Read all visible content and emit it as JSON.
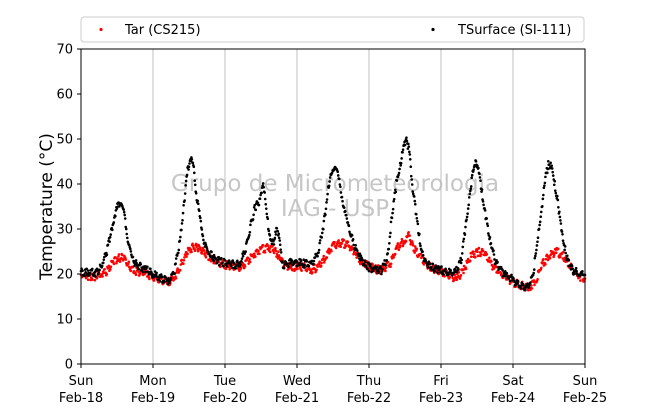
{
  "chart_data": {
    "type": "scatter",
    "xlabel": "",
    "ylabel": "Temperature (°C)",
    "ylim": [
      0,
      70
    ],
    "yticks": [
      0,
      10,
      20,
      30,
      40,
      50,
      60,
      70
    ],
    "xlim": [
      0,
      7
    ],
    "xticks": [
      {
        "x": 0,
        "line1": "Sun",
        "line2": "Feb-18"
      },
      {
        "x": 1,
        "line1": "Mon",
        "line2": "Feb-19"
      },
      {
        "x": 2,
        "line1": "Tue",
        "line2": "Feb-20"
      },
      {
        "x": 3,
        "line1": "Wed",
        "line2": "Feb-21"
      },
      {
        "x": 4,
        "line1": "Thu",
        "line2": "Feb-22"
      },
      {
        "x": 5,
        "line1": "Fri",
        "line2": "Feb-23"
      },
      {
        "x": 6,
        "line1": "Sat",
        "line2": "Feb-24"
      },
      {
        "x": 7,
        "line1": "Sun",
        "line2": "Feb-25"
      }
    ],
    "grid": "vertical",
    "legend_position": "top",
    "watermark": [
      "Grupo de Micrometeorologia",
      "IAG - USP"
    ],
    "series": [
      {
        "name": "Tar (CS215)",
        "color": "#ff0000",
        "marker": "dot",
        "points": [
          [
            0.0,
            19.8
          ],
          [
            0.1,
            19.5
          ],
          [
            0.2,
            19.5
          ],
          [
            0.3,
            19.9
          ],
          [
            0.38,
            21.0
          ],
          [
            0.45,
            22.8
          ],
          [
            0.52,
            23.5
          ],
          [
            0.58,
            23.8
          ],
          [
            0.65,
            22.0
          ],
          [
            0.75,
            20.8
          ],
          [
            0.9,
            20.0
          ],
          [
            1.0,
            19.3
          ],
          [
            1.1,
            18.8
          ],
          [
            1.22,
            18.3
          ],
          [
            1.32,
            19.5
          ],
          [
            1.4,
            22.5
          ],
          [
            1.48,
            25.0
          ],
          [
            1.55,
            26.0
          ],
          [
            1.62,
            25.8
          ],
          [
            1.7,
            25.0
          ],
          [
            1.8,
            23.5
          ],
          [
            1.9,
            22.5
          ],
          [
            2.0,
            22.0
          ],
          [
            2.1,
            21.8
          ],
          [
            2.2,
            21.5
          ],
          [
            2.3,
            22.5
          ],
          [
            2.4,
            24.5
          ],
          [
            2.5,
            25.5
          ],
          [
            2.6,
            25.8
          ],
          [
            2.68,
            25.5
          ],
          [
            2.75,
            24.0
          ],
          [
            2.82,
            22.0
          ],
          [
            2.95,
            21.5
          ],
          [
            3.0,
            21.8
          ],
          [
            3.1,
            21.5
          ],
          [
            3.2,
            21.0
          ],
          [
            3.3,
            21.5
          ],
          [
            3.4,
            24.0
          ],
          [
            3.5,
            26.2
          ],
          [
            3.6,
            27.0
          ],
          [
            3.7,
            26.5
          ],
          [
            3.8,
            25.0
          ],
          [
            3.9,
            22.5
          ],
          [
            4.0,
            21.8
          ],
          [
            4.1,
            21.0
          ],
          [
            4.2,
            21.0
          ],
          [
            4.3,
            22.5
          ],
          [
            4.4,
            26.0
          ],
          [
            4.5,
            27.5
          ],
          [
            4.55,
            28.5
          ],
          [
            4.62,
            26.0
          ],
          [
            4.72,
            23.5
          ],
          [
            4.85,
            21.5
          ],
          [
            5.0,
            20.5
          ],
          [
            5.1,
            19.8
          ],
          [
            5.22,
            19.0
          ],
          [
            5.32,
            21.0
          ],
          [
            5.42,
            24.0
          ],
          [
            5.52,
            25.0
          ],
          [
            5.6,
            24.5
          ],
          [
            5.7,
            22.0
          ],
          [
            5.85,
            20.0
          ],
          [
            6.0,
            18.2
          ],
          [
            6.1,
            17.5
          ],
          [
            6.22,
            17.0
          ],
          [
            6.32,
            18.5
          ],
          [
            6.4,
            22.0
          ],
          [
            6.5,
            24.0
          ],
          [
            6.6,
            25.0
          ],
          [
            6.7,
            24.0
          ],
          [
            6.8,
            21.5
          ],
          [
            6.9,
            19.5
          ],
          [
            7.0,
            19.0
          ]
        ]
      },
      {
        "name": "TSurface (SI-111)",
        "color": "#000000",
        "marker": "dot",
        "points": [
          [
            0.0,
            20.5
          ],
          [
            0.1,
            20.3
          ],
          [
            0.2,
            20.2
          ],
          [
            0.28,
            21.5
          ],
          [
            0.36,
            25.0
          ],
          [
            0.42,
            29.5
          ],
          [
            0.47,
            33.0
          ],
          [
            0.52,
            35.5
          ],
          [
            0.56,
            36.0
          ],
          [
            0.6,
            33.5
          ],
          [
            0.65,
            28.0
          ],
          [
            0.7,
            23.5
          ],
          [
            0.78,
            22.0
          ],
          [
            0.9,
            21.0
          ],
          [
            1.0,
            20.0
          ],
          [
            1.1,
            19.2
          ],
          [
            1.22,
            18.5
          ],
          [
            1.3,
            21.0
          ],
          [
            1.38,
            28.0
          ],
          [
            1.44,
            37.0
          ],
          [
            1.48,
            43.0
          ],
          [
            1.52,
            46.0
          ],
          [
            1.56,
            44.0
          ],
          [
            1.6,
            38.0
          ],
          [
            1.65,
            32.5
          ],
          [
            1.7,
            28.0
          ],
          [
            1.75,
            25.0
          ],
          [
            1.82,
            24.0
          ],
          [
            1.92,
            22.8
          ],
          [
            2.0,
            22.5
          ],
          [
            2.1,
            22.2
          ],
          [
            2.2,
            22.0
          ],
          [
            2.28,
            25.0
          ],
          [
            2.36,
            31.0
          ],
          [
            2.42,
            35.0
          ],
          [
            2.48,
            36.0
          ],
          [
            2.53,
            41.0
          ],
          [
            2.58,
            33.0
          ],
          [
            2.63,
            28.0
          ],
          [
            2.68,
            26.5
          ],
          [
            2.72,
            31.0
          ],
          [
            2.76,
            27.0
          ],
          [
            2.8,
            22.0
          ],
          [
            2.9,
            22.5
          ],
          [
            3.0,
            22.5
          ],
          [
            3.1,
            22.3
          ],
          [
            3.2,
            22.0
          ],
          [
            3.3,
            25.0
          ],
          [
            3.38,
            32.0
          ],
          [
            3.44,
            40.0
          ],
          [
            3.48,
            42.0
          ],
          [
            3.53,
            44.5
          ],
          [
            3.58,
            41.0
          ],
          [
            3.64,
            36.0
          ],
          [
            3.7,
            31.0
          ],
          [
            3.78,
            27.0
          ],
          [
            3.88,
            23.5
          ],
          [
            3.95,
            22.0
          ],
          [
            4.0,
            21.5
          ],
          [
            4.1,
            21.0
          ],
          [
            4.18,
            20.8
          ],
          [
            4.26,
            24.0
          ],
          [
            4.32,
            33.0
          ],
          [
            4.38,
            40.0
          ],
          [
            4.44,
            45.0
          ],
          [
            4.48,
            48.0
          ],
          [
            4.52,
            50.5
          ],
          [
            4.56,
            47.0
          ],
          [
            4.6,
            40.0
          ],
          [
            4.65,
            34.0
          ],
          [
            4.7,
            28.0
          ],
          [
            4.76,
            23.0
          ],
          [
            4.88,
            21.5
          ],
          [
            4.95,
            21.0
          ],
          [
            5.0,
            20.8
          ],
          [
            5.1,
            20.5
          ],
          [
            5.2,
            20.2
          ],
          [
            5.28,
            23.0
          ],
          [
            5.34,
            30.0
          ],
          [
            5.4,
            38.0
          ],
          [
            5.44,
            42.0
          ],
          [
            5.48,
            45.5
          ],
          [
            5.52,
            43.0
          ],
          [
            5.57,
            38.0
          ],
          [
            5.62,
            33.0
          ],
          [
            5.68,
            28.0
          ],
          [
            5.75,
            23.0
          ],
          [
            5.85,
            20.5
          ],
          [
            5.95,
            19.5
          ],
          [
            6.0,
            18.5
          ],
          [
            6.1,
            17.5
          ],
          [
            6.2,
            17.0
          ],
          [
            6.28,
            20.0
          ],
          [
            6.34,
            27.0
          ],
          [
            6.4,
            35.0
          ],
          [
            6.45,
            41.0
          ],
          [
            6.49,
            44.5
          ],
          [
            6.53,
            44.0
          ],
          [
            6.58,
            40.0
          ],
          [
            6.63,
            35.0
          ],
          [
            6.68,
            29.0
          ],
          [
            6.74,
            24.0
          ],
          [
            6.82,
            21.0
          ],
          [
            6.92,
            20.0
          ],
          [
            7.0,
            19.8
          ]
        ]
      }
    ]
  }
}
